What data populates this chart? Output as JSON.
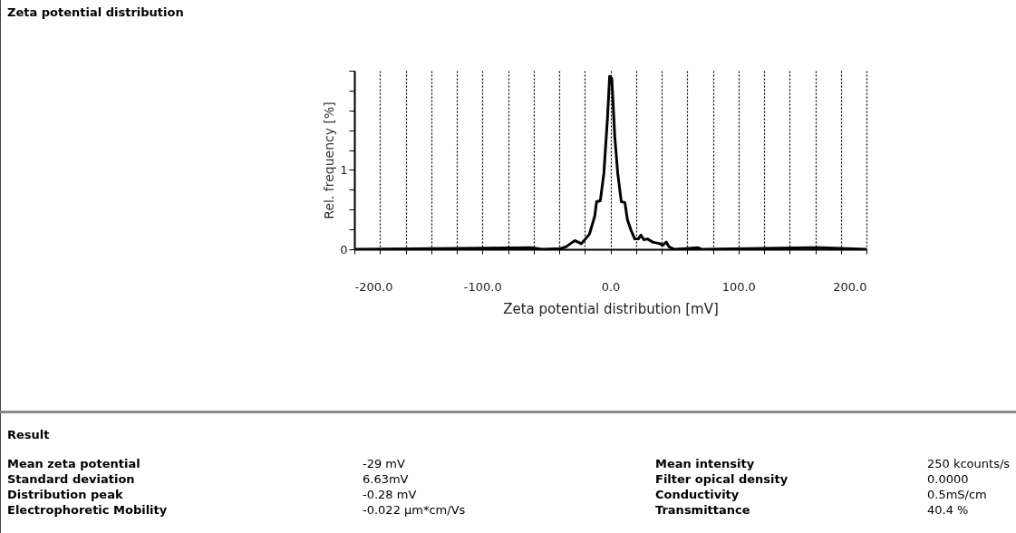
{
  "chart_data": {
    "type": "line",
    "title": "Zeta potential distribution",
    "xlabel": "Zeta potential distribution [mV]",
    "ylabel": "Rel. frequency [%]",
    "x": [
      -200,
      -61.8,
      -53.3,
      -39.1,
      -34.8,
      -27.8,
      -22.7,
      -16.4,
      -12.2,
      -10.8,
      -7.9,
      -5.1,
      -2.3,
      -0.6,
      1.1,
      3.4,
      5.7,
      8.5,
      11.3,
      13.3,
      16.1,
      19.0,
      21.8,
      23.8,
      26.1,
      28.9,
      33.1,
      38.8,
      40.8,
      43.6,
      45.9,
      50.1,
      68.6,
      71.4,
      156,
      165,
      200
    ],
    "series": [
      {
        "color": "#000000",
        "values": [
          0,
          0.02,
          0,
          0.01,
          0.03,
          0.11,
          0.07,
          0.19,
          0.42,
          0.6,
          0.61,
          0.96,
          1.65,
          2.18,
          2.15,
          1.42,
          0.96,
          0.6,
          0.59,
          0.37,
          0.24,
          0.13,
          0.13,
          0.18,
          0.12,
          0.13,
          0.09,
          0.07,
          0.05,
          0.09,
          0.03,
          0,
          0.02,
          0,
          0.02,
          0.02,
          0
        ]
      }
    ],
    "xlim": [
      -200,
      200
    ],
    "xticks": [
      {
        "value": -200,
        "label": "-200.0"
      },
      {
        "value": -180,
        "label": null
      },
      {
        "value": -160,
        "label": null
      },
      {
        "value": -140,
        "label": null
      },
      {
        "value": -120,
        "label": null
      },
      {
        "value": -100,
        "label": "-100.0"
      },
      {
        "value": -80,
        "label": null
      },
      {
        "value": -60,
        "label": null
      },
      {
        "value": -40,
        "label": null
      },
      {
        "value": -20,
        "label": null
      },
      {
        "value": 0,
        "label": "0.0"
      },
      {
        "value": 20,
        "label": null
      },
      {
        "value": 40,
        "label": null
      },
      {
        "value": 60,
        "label": null
      },
      {
        "value": 80,
        "label": null
      },
      {
        "value": 100,
        "label": "100.0"
      },
      {
        "value": 120,
        "label": null
      },
      {
        "value": 140,
        "label": null
      },
      {
        "value": 160,
        "label": null
      },
      {
        "value": 180,
        "label": null
      },
      {
        "value": 200,
        "label": "200.0"
      }
    ],
    "ylim": [
      0,
      2.25
    ],
    "yticks": [
      0,
      {
        "value": 0.25,
        "label": null
      },
      {
        "value": 0.5,
        "label": null
      },
      {
        "value": 0.75,
        "label": null
      },
      1,
      {
        "value": 1.25,
        "label": null
      },
      {
        "value": 1.5,
        "label": null
      },
      {
        "value": 1.75,
        "label": null
      },
      {
        "value": 2,
        "label": null
      },
      {
        "value": 2.25,
        "label": null
      }
    ],
    "grid": "x",
    "marker": "none",
    "line_style": "solid",
    "annotations": [
      "Result",
      "Mean zeta potential",
      "-29 mV",
      "Standard deviation",
      "6.63mV",
      "Distribution peak",
      "-0.28 mV",
      "Electrophoretic Mobility",
      "-0.022 µm*cm/Vs",
      "Mean intensity",
      "250 kcounts/s",
      "Filter opical density",
      "0.0000",
      "Conductivity",
      "0.5mS/cm",
      "Transmittance",
      "40.4 %"
    ]
  }
}
